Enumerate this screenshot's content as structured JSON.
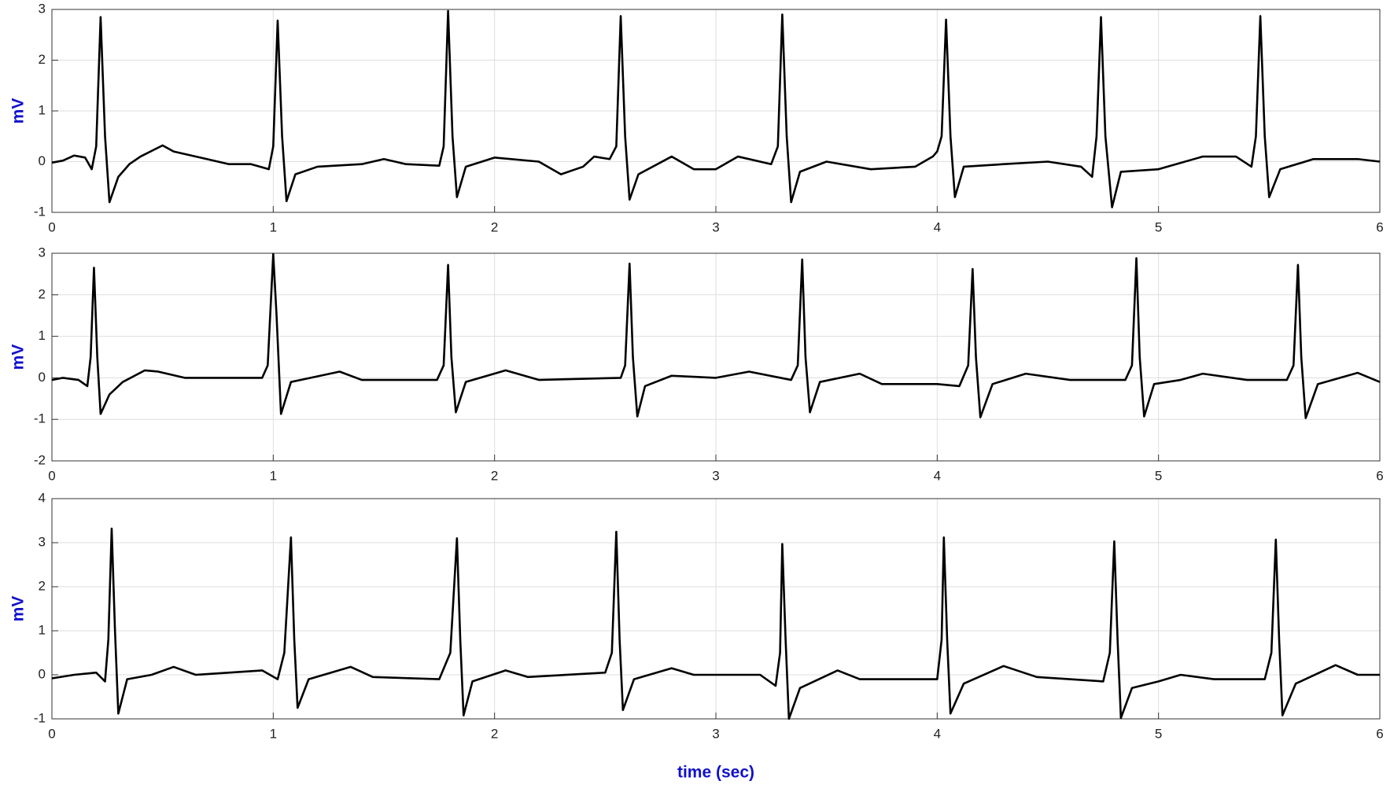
{
  "chart_data": [
    {
      "type": "line",
      "ylabel": "mV",
      "xlim": [
        0,
        6
      ],
      "ylim": [
        -1,
        3
      ],
      "xticks": [
        0,
        1,
        2,
        3,
        4,
        5,
        6
      ],
      "yticks": [
        -1,
        0,
        1,
        2,
        3
      ],
      "grid": true,
      "x": [
        0,
        0.05,
        0.1,
        0.15,
        0.18,
        0.2,
        0.22,
        0.24,
        0.26,
        0.3,
        0.35,
        0.4,
        0.5,
        0.55,
        0.7,
        0.8,
        0.9,
        0.98,
        1.0,
        1.02,
        1.04,
        1.06,
        1.1,
        1.2,
        1.4,
        1.5,
        1.6,
        1.75,
        1.77,
        1.79,
        1.81,
        1.83,
        1.87,
        2.0,
        2.2,
        2.3,
        2.4,
        2.45,
        2.52,
        2.55,
        2.57,
        2.59,
        2.61,
        2.65,
        2.8,
        2.9,
        3.0,
        3.1,
        3.25,
        3.28,
        3.3,
        3.32,
        3.34,
        3.38,
        3.5,
        3.7,
        3.9,
        3.98,
        4.0,
        4.02,
        4.04,
        4.06,
        4.08,
        4.12,
        4.3,
        4.5,
        4.65,
        4.7,
        4.72,
        4.74,
        4.76,
        4.79,
        4.83,
        5.0,
        5.2,
        5.35,
        5.42,
        5.44,
        5.46,
        5.48,
        5.5,
        5.55,
        5.7,
        5.9,
        6.0
      ],
      "series": [
        {
          "color": "#000000",
          "values": [
            -0.02,
            0.02,
            0.12,
            0.08,
            -0.15,
            0.3,
            2.85,
            0.5,
            -0.8,
            -0.3,
            -0.05,
            0.1,
            0.32,
            0.2,
            0.05,
            -0.05,
            -0.05,
            -0.15,
            0.3,
            2.78,
            0.5,
            -0.78,
            -0.25,
            -0.1,
            -0.05,
            0.05,
            -0.05,
            -0.08,
            0.3,
            2.97,
            0.5,
            -0.7,
            -0.1,
            0.08,
            0.0,
            -0.25,
            -0.1,
            0.1,
            0.05,
            0.3,
            2.87,
            0.5,
            -0.75,
            -0.25,
            0.1,
            -0.15,
            -0.15,
            0.1,
            -0.05,
            0.3,
            2.9,
            0.5,
            -0.8,
            -0.2,
            0.0,
            -0.15,
            -0.1,
            0.1,
            0.2,
            0.5,
            2.8,
            0.5,
            -0.7,
            -0.1,
            -0.05,
            0.0,
            -0.1,
            -0.3,
            0.5,
            2.85,
            0.5,
            -0.9,
            -0.2,
            -0.15,
            0.1,
            0.1,
            -0.1,
            0.5,
            2.87,
            0.5,
            -0.7,
            -0.15,
            0.05,
            0.05,
            0.0
          ]
        }
      ]
    },
    {
      "type": "line",
      "ylabel": "mV",
      "xlim": [
        0,
        6
      ],
      "ylim": [
        -2,
        3
      ],
      "xticks": [
        0,
        1,
        2,
        3,
        4,
        5,
        6
      ],
      "yticks": [
        -2,
        -1,
        0,
        1,
        2,
        3
      ],
      "grid": true,
      "x": [
        0,
        0.05,
        0.12,
        0.16,
        0.175,
        0.19,
        0.205,
        0.22,
        0.26,
        0.32,
        0.42,
        0.48,
        0.6,
        0.8,
        0.95,
        0.975,
        1.0,
        1.015,
        1.035,
        1.08,
        1.3,
        1.4,
        1.74,
        1.77,
        1.79,
        1.805,
        1.825,
        1.87,
        2.05,
        2.2,
        2.57,
        2.59,
        2.61,
        2.625,
        2.645,
        2.68,
        2.8,
        3.0,
        3.15,
        3.34,
        3.37,
        3.39,
        3.405,
        3.425,
        3.47,
        3.65,
        3.75,
        4.0,
        4.1,
        4.14,
        4.16,
        4.175,
        4.195,
        4.25,
        4.4,
        4.6,
        4.85,
        4.88,
        4.9,
        4.915,
        4.935,
        4.98,
        5.1,
        5.2,
        5.4,
        5.58,
        5.61,
        5.63,
        5.645,
        5.665,
        5.72,
        5.9,
        6.0
      ],
      "series": [
        {
          "color": "#000000",
          "values": [
            -0.05,
            0.0,
            -0.05,
            -0.2,
            0.5,
            2.65,
            0.5,
            -0.87,
            -0.4,
            -0.1,
            0.18,
            0.15,
            0.0,
            0.0,
            0.0,
            0.3,
            2.98,
            1.5,
            -0.87,
            -0.1,
            0.15,
            -0.05,
            -0.05,
            0.3,
            2.72,
            0.5,
            -0.83,
            -0.1,
            0.18,
            -0.05,
            0.0,
            0.3,
            2.75,
            0.5,
            -0.93,
            -0.2,
            0.05,
            0.0,
            0.15,
            -0.05,
            0.3,
            2.85,
            0.5,
            -0.83,
            -0.1,
            0.1,
            -0.15,
            -0.15,
            -0.2,
            0.3,
            2.62,
            0.5,
            -0.95,
            -0.15,
            0.1,
            -0.05,
            -0.05,
            0.3,
            2.88,
            0.5,
            -0.93,
            -0.15,
            -0.05,
            0.1,
            -0.05,
            -0.05,
            0.3,
            2.72,
            0.5,
            -0.97,
            -0.15,
            0.12,
            -0.1
          ]
        }
      ]
    },
    {
      "type": "line",
      "ylabel": "mV",
      "xlabel": "time (sec)",
      "xlim": [
        0,
        6
      ],
      "ylim": [
        -1,
        4
      ],
      "xticks": [
        0,
        1,
        2,
        3,
        4,
        5,
        6
      ],
      "yticks": [
        -1,
        0,
        1,
        2,
        3,
        4
      ],
      "grid": true,
      "x": [
        0,
        0.1,
        0.2,
        0.24,
        0.255,
        0.27,
        0.285,
        0.3,
        0.34,
        0.45,
        0.55,
        0.65,
        0.95,
        1.02,
        1.05,
        1.08,
        1.095,
        1.11,
        1.16,
        1.35,
        1.45,
        1.75,
        1.8,
        1.83,
        1.845,
        1.86,
        1.9,
        2.05,
        2.15,
        2.5,
        2.53,
        2.55,
        2.565,
        2.58,
        2.63,
        2.8,
        2.9,
        3.2,
        3.27,
        3.29,
        3.3,
        3.315,
        3.33,
        3.38,
        3.55,
        3.65,
        4.0,
        4.02,
        4.03,
        4.045,
        4.06,
        4.12,
        4.3,
        4.45,
        4.75,
        4.78,
        4.8,
        4.815,
        4.83,
        4.88,
        5.0,
        5.1,
        5.25,
        5.48,
        5.51,
        5.53,
        5.545,
        5.56,
        5.62,
        5.8,
        5.9,
        6.0
      ],
      "series": [
        {
          "color": "#000000",
          "values": [
            -0.08,
            0.0,
            0.05,
            -0.15,
            0.8,
            3.32,
            1.0,
            -0.88,
            -0.1,
            0.0,
            0.18,
            0.0,
            0.1,
            -0.1,
            0.5,
            3.12,
            0.8,
            -0.75,
            -0.1,
            0.18,
            -0.05,
            -0.1,
            0.5,
            3.1,
            0.8,
            -0.92,
            -0.15,
            0.1,
            -0.05,
            0.05,
            0.5,
            3.25,
            0.8,
            -0.8,
            -0.1,
            0.15,
            0.0,
            0.0,
            -0.25,
            0.5,
            2.97,
            0.8,
            -1.0,
            -0.3,
            0.1,
            -0.1,
            -0.1,
            0.8,
            3.12,
            0.8,
            -0.88,
            -0.2,
            0.2,
            -0.05,
            -0.15,
            0.5,
            3.03,
            0.8,
            -0.98,
            -0.3,
            -0.15,
            0.0,
            -0.1,
            -0.1,
            0.5,
            3.07,
            0.8,
            -0.92,
            -0.2,
            0.22,
            0.0,
            0.0
          ]
        }
      ]
    }
  ]
}
